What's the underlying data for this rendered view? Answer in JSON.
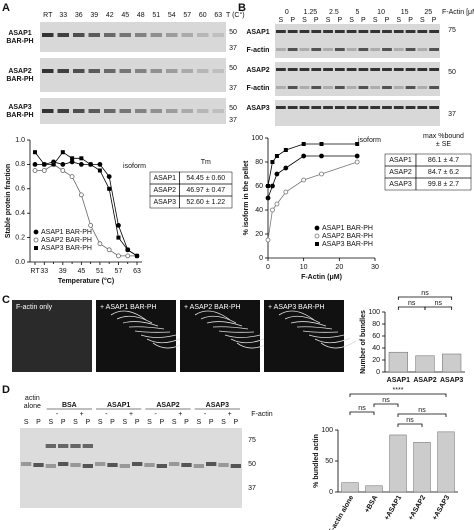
{
  "panels": [
    "A",
    "B",
    "C",
    "D"
  ],
  "gel_a": {
    "temps": [
      "RT",
      "33",
      "36",
      "39",
      "42",
      "45",
      "48",
      "51",
      "54",
      "57",
      "60",
      "63"
    ],
    "unit": "T (C°)",
    "rows": [
      [
        "ASAP1",
        "BAR-PH"
      ],
      [
        "ASAP2",
        "BAR-PH"
      ],
      [
        "ASAP3",
        "BAR-PH"
      ]
    ],
    "mw": [
      "50",
      "37"
    ]
  },
  "table_a": {
    "header": [
      "isoform",
      "Tm"
    ],
    "rows": [
      [
        "ASAP1",
        "54.45 ± 0.60"
      ],
      [
        "ASAP2",
        "46.97 ± 0.47"
      ],
      [
        "ASAP3",
        "52.60 ± 1.22"
      ]
    ]
  },
  "gel_b": {
    "conc": [
      "0",
      "1.25",
      "2.5",
      "5",
      "10",
      "15",
      "25"
    ],
    "unit": "F-Actin [μM]",
    "fractions": [
      "S",
      "P"
    ],
    "rows": [
      "ASAP1",
      "ASAP2",
      "ASAP3"
    ],
    "actin": "F-actin",
    "mw": [
      "75",
      "50",
      "37"
    ]
  },
  "table_b": {
    "header": [
      "isoform",
      "max %bound",
      "± SE"
    ],
    "rows": [
      [
        "ASAP1",
        "86.1 ± 4.7"
      ],
      [
        "ASAP2",
        "84.7 ± 6.2"
      ],
      [
        "ASAP3",
        "99.8 ± 2.7"
      ]
    ]
  },
  "micrographs": [
    "F-actin only",
    "+ ASAP1 BAR-PH",
    "+ ASAP2 BAR-PH",
    "+ ASAP3 BAR-PH"
  ],
  "gel_d": {
    "alone": [
      "actin",
      "alone"
    ],
    "groups": [
      "BSA",
      "ASAP1",
      "ASAP2",
      "ASAP3"
    ],
    "minus": "-",
    "plus": "+",
    "fractions": [
      "S",
      "P"
    ],
    "actin": "F-actin",
    "mw": [
      "75",
      "50",
      "37"
    ]
  },
  "chart_data": [
    {
      "type": "line",
      "x_label": "Temperature (°C)",
      "y_label": "Stable protein fraction",
      "categories": [
        "RT",
        "33",
        null,
        "39",
        null,
        "45",
        null,
        "51",
        null,
        "57",
        null,
        "63"
      ],
      "ylim": [
        0,
        1
      ],
      "yticks": [
        {
          "value": 0,
          "label": "0.0"
        },
        {
          "value": 0.2,
          "label": "0.2"
        },
        {
          "value": 0.4,
          "label": "0.4"
        },
        {
          "value": 0.6,
          "label": "0.6"
        },
        {
          "value": 0.8,
          "label": "0.8"
        },
        {
          "value": 1,
          "label": "1.0"
        }
      ],
      "legend": "lower left",
      "series": [
        {
          "name": "ASAP1 BAR-PH",
          "color": "#000000",
          "marker": "circle",
          "values": [
            0.8,
            0.8,
            0.82,
            0.8,
            0.82,
            0.8,
            0.8,
            0.8,
            0.7,
            0.3,
            0.1,
            0.05
          ]
        },
        {
          "name": "ASAP2 BAR-PH",
          "color": "#666666",
          "marker": "open-circle",
          "values": [
            0.75,
            0.75,
            0.8,
            0.75,
            0.7,
            0.55,
            0.3,
            0.15,
            0.1,
            0.05,
            0.05,
            0.05
          ]
        },
        {
          "name": "ASAP3 BAR-PH",
          "color": "#000000",
          "marker": "square",
          "values": [
            0.9,
            0.8,
            0.8,
            0.9,
            0.85,
            0.85,
            0.8,
            0.75,
            0.6,
            0.2,
            0.1,
            0.05
          ]
        }
      ]
    },
    {
      "type": "line",
      "x_label": "F-Actin (μM)",
      "y_label": "% isoform in the pellet",
      "x": [
        0,
        1.25,
        2.5,
        5,
        10,
        15,
        25
      ],
      "xlim": [
        0,
        30
      ],
      "xticks": [
        0,
        10,
        20,
        30
      ],
      "ylim": [
        0,
        100
      ],
      "yticks": [
        0,
        20,
        40,
        60,
        80,
        100
      ],
      "legend": "lower right",
      "series": [
        {
          "name": "ASAP1 BAR-PH",
          "color": "#000000",
          "marker": "circle",
          "values": [
            50,
            60,
            70,
            75,
            85,
            85,
            85
          ]
        },
        {
          "name": "ASAP2 BAR-PH",
          "color": "#777777",
          "marker": "open-circle",
          "values": [
            15,
            40,
            45,
            55,
            65,
            70,
            80
          ]
        },
        {
          "name": "ASAP3 BAR-PH",
          "color": "#000000",
          "marker": "square",
          "values": [
            60,
            80,
            85,
            90,
            95,
            95,
            95
          ]
        }
      ]
    },
    {
      "type": "bar",
      "y_label": "Number of bundles",
      "categories": [
        "ASAP1",
        "ASAP2",
        "ASAP3"
      ],
      "values": [
        33,
        27,
        30
      ],
      "color": "#cccccc",
      "ylim": [
        0,
        100
      ],
      "yticks": [
        0,
        20,
        40,
        60,
        80,
        100
      ],
      "annotations": [
        "ns",
        "ns",
        "ns"
      ]
    },
    {
      "type": "bar",
      "y_label": "% bundled actin",
      "categories": [
        "F-actin alone",
        "+BSA",
        "+ASAP1",
        "+ASAP2",
        "+ASAP3"
      ],
      "values": [
        15,
        10,
        92,
        80,
        97
      ],
      "color": "#cccccc",
      "ylim": [
        0,
        100
      ],
      "yticks": [
        0,
        50,
        100
      ],
      "annotations": [
        "****",
        "ns",
        "ns",
        "ns",
        "ns"
      ]
    }
  ]
}
